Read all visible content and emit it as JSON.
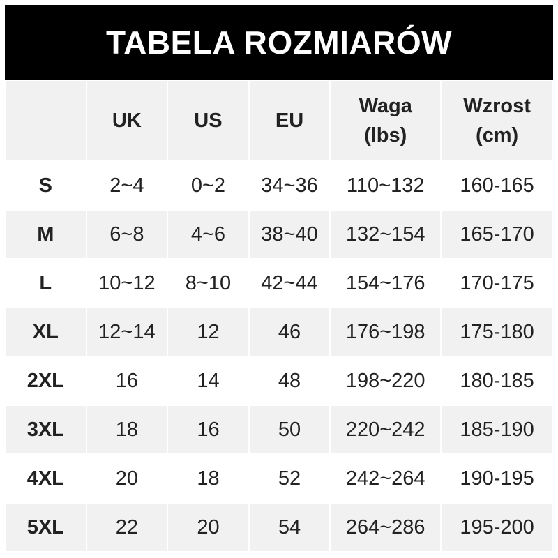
{
  "title": "TABELA ROZMIARÓW",
  "headers": [
    "",
    "UK",
    "US",
    "EU",
    "Waga\n(lbs)",
    "Wzrost\n(cm)"
  ],
  "header_lines": {
    "waga": [
      "Waga",
      "(lbs)"
    ],
    "wzrost": [
      "Wzrost",
      "(cm)"
    ]
  },
  "rows": [
    [
      "S",
      "2~4",
      "0~2",
      "34~36",
      "110~132",
      "160-165"
    ],
    [
      "M",
      "6~8",
      "4~6",
      "38~40",
      "132~154",
      "165-170"
    ],
    [
      "L",
      "10~12",
      "8~10",
      "42~44",
      "154~176",
      "170-175"
    ],
    [
      "XL",
      "12~14",
      "12",
      "46",
      "176~198",
      "175-180"
    ],
    [
      "2XL",
      "16",
      "14",
      "48",
      "198~220",
      "180-185"
    ],
    [
      "3XL",
      "18",
      "16",
      "50",
      "220~242",
      "185-190"
    ],
    [
      "4XL",
      "20",
      "18",
      "52",
      "242~264",
      "190-195"
    ],
    [
      "5XL",
      "22",
      "20",
      "54",
      "264~286",
      "195-200"
    ]
  ],
  "colors": {
    "header_bg": "#000000",
    "row_alt_bg": "#f1f1f1"
  }
}
